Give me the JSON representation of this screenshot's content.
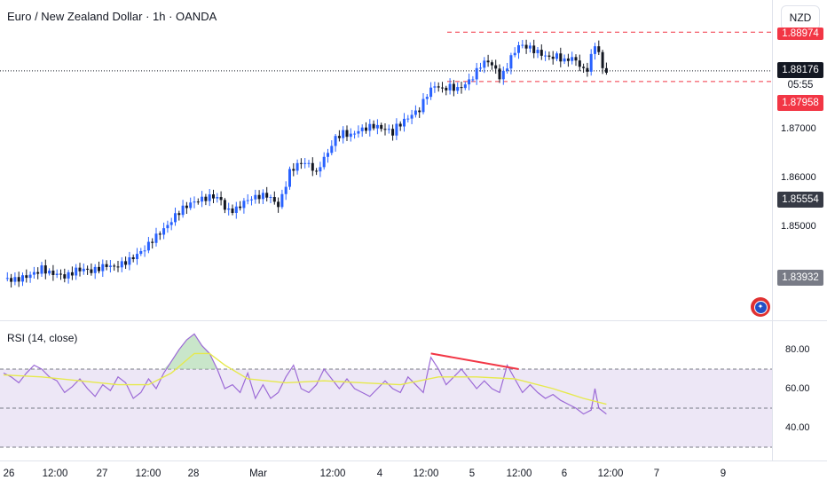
{
  "header": {
    "title": "Euro / New Zealand Dollar · 1h · OANDA",
    "currency": "NZD"
  },
  "price_axis": {
    "ticks": [
      "1.87000",
      "1.86000",
      "1.85000"
    ],
    "tags": {
      "top_red": "1.88974",
      "current_price": "1.88176",
      "countdown": "05:55",
      "lower_red": "1.87958",
      "dark_1": "1.85554",
      "gray_1": "1.83932"
    }
  },
  "time_axis": {
    "labels": [
      "26",
      "12:00",
      "27",
      "12:00",
      "28",
      "Mar",
      "12:00",
      "4",
      "12:00",
      "5",
      "12:00",
      "6",
      "12:00",
      "7",
      "9"
    ]
  },
  "rsi": {
    "title": "RSI (14, close)",
    "ticks": [
      "80.00",
      "60.00",
      "40.00"
    ]
  },
  "colors": {
    "up_candle": "#2962ff",
    "down_candle": "#131722",
    "red_line": "#f23645",
    "rsi_line": "#9c6ad6",
    "rsi_ma": "#e6e94d",
    "rsi_band": "#ede7f6",
    "overbought_fill": "#a5d6a7"
  },
  "chart_data": [
    {
      "type": "candlestick",
      "symbol": "EURNZD",
      "interval": "1h",
      "current_price": 1.88176,
      "countdown": "05:55",
      "levels": [
        1.88974,
        1.87958
      ],
      "price_range": [
        1.8345,
        1.8947
      ],
      "close_path": [
        [
          0,
          1.839
        ],
        [
          3,
          1.8388
        ],
        [
          6,
          1.8395
        ],
        [
          9,
          1.8405
        ],
        [
          10,
          1.8412
        ],
        [
          12,
          1.8402
        ],
        [
          14,
          1.84
        ],
        [
          16,
          1.8395
        ],
        [
          17,
          1.8398
        ],
        [
          19,
          1.8408
        ],
        [
          21,
          1.841
        ],
        [
          23,
          1.8406
        ],
        [
          25,
          1.8412
        ],
        [
          27,
          1.8418
        ],
        [
          29,
          1.8414
        ],
        [
          31,
          1.8421
        ],
        [
          33,
          1.8429
        ],
        [
          35,
          1.844
        ],
        [
          37,
          1.8452
        ],
        [
          39,
          1.847
        ],
        [
          41,
          1.8485
        ],
        [
          43,
          1.85
        ],
        [
          45,
          1.852
        ],
        [
          47,
          1.8535
        ],
        [
          49,
          1.8545
        ],
        [
          51,
          1.8552
        ],
        [
          53,
          1.8556
        ],
        [
          55,
          1.856
        ],
        [
          57,
          1.8552
        ],
        [
          58,
          1.8535
        ],
        [
          59,
          1.853
        ],
        [
          61,
          1.8533
        ],
        [
          63,
          1.8548
        ],
        [
          65,
          1.8556
        ],
        [
          67,
          1.856
        ],
        [
          69,
          1.8562
        ],
        [
          71,
          1.8549
        ],
        [
          72,
          1.854
        ],
        [
          73,
          1.856
        ],
        [
          75,
          1.861
        ],
        [
          77,
          1.8625
        ],
        [
          79,
          1.863
        ],
        [
          81,
          1.8618
        ],
        [
          82,
          1.8605
        ],
        [
          83,
          1.8625
        ],
        [
          85,
          1.865
        ],
        [
          87,
          1.868
        ],
        [
          89,
          1.869
        ],
        [
          91,
          1.8685
        ],
        [
          93,
          1.8695
        ],
        [
          95,
          1.87
        ],
        [
          97,
          1.8705
        ],
        [
          99,
          1.87
        ],
        [
          101,
          1.8695
        ],
        [
          102,
          1.869
        ],
        [
          103,
          1.8703
        ],
        [
          105,
          1.8715
        ],
        [
          107,
          1.8728
        ],
        [
          109,
          1.8738
        ],
        [
          111,
          1.877
        ],
        [
          113,
          1.8788
        ],
        [
          115,
          1.878
        ],
        [
          117,
          1.8785
        ],
        [
          119,
          1.878
        ],
        [
          121,
          1.879
        ],
        [
          123,
          1.8805
        ],
        [
          125,
          1.883
        ],
        [
          127,
          1.8838
        ],
        [
          129,
          1.882
        ],
        [
          130,
          1.8805
        ],
        [
          131,
          1.8812
        ],
        [
          133,
          1.8845
        ],
        [
          135,
          1.887
        ],
        [
          137,
          1.8868
        ],
        [
          139,
          1.886
        ],
        [
          141,
          1.8852
        ],
        [
          143,
          1.8845
        ],
        [
          145,
          1.8848
        ],
        [
          147,
          1.8838
        ],
        [
          149,
          1.8845
        ],
        [
          151,
          1.883
        ],
        [
          152,
          1.8818
        ],
        [
          153,
          1.8822
        ],
        [
          155,
          1.8872
        ],
        [
          156,
          1.8855
        ],
        [
          157,
          1.8822
        ],
        [
          158,
          1.88176
        ]
      ]
    },
    {
      "type": "line",
      "title": "RSI (14, close)",
      "ylim": [
        30,
        90
      ],
      "bands": [
        70,
        50,
        30
      ],
      "rsi_path": [
        [
          0,
          68
        ],
        [
          2,
          66
        ],
        [
          4,
          63
        ],
        [
          6,
          68
        ],
        [
          8,
          72
        ],
        [
          10,
          70
        ],
        [
          12,
          66
        ],
        [
          14,
          64
        ],
        [
          16,
          58
        ],
        [
          18,
          61
        ],
        [
          20,
          65
        ],
        [
          22,
          60
        ],
        [
          24,
          56
        ],
        [
          26,
          62
        ],
        [
          28,
          59
        ],
        [
          30,
          66
        ],
        [
          32,
          63
        ],
        [
          34,
          55
        ],
        [
          36,
          58
        ],
        [
          38,
          65
        ],
        [
          40,
          60
        ],
        [
          42,
          68
        ],
        [
          44,
          74
        ],
        [
          46,
          80
        ],
        [
          48,
          85
        ],
        [
          50,
          88
        ],
        [
          52,
          82
        ],
        [
          54,
          78
        ],
        [
          56,
          70
        ],
        [
          58,
          60
        ],
        [
          60,
          62
        ],
        [
          62,
          58
        ],
        [
          64,
          68
        ],
        [
          66,
          55
        ],
        [
          68,
          62
        ],
        [
          70,
          55
        ],
        [
          72,
          58
        ],
        [
          74,
          66
        ],
        [
          76,
          72
        ],
        [
          78,
          60
        ],
        [
          80,
          58
        ],
        [
          82,
          62
        ],
        [
          84,
          70
        ],
        [
          86,
          65
        ],
        [
          88,
          60
        ],
        [
          90,
          65
        ],
        [
          92,
          60
        ],
        [
          94,
          58
        ],
        [
          96,
          56
        ],
        [
          98,
          60
        ],
        [
          100,
          64
        ],
        [
          102,
          60
        ],
        [
          104,
          58
        ],
        [
          106,
          66
        ],
        [
          108,
          62
        ],
        [
          110,
          58
        ],
        [
          112,
          76
        ],
        [
          114,
          70
        ],
        [
          116,
          62
        ],
        [
          118,
          66
        ],
        [
          120,
          70
        ],
        [
          122,
          65
        ],
        [
          124,
          60
        ],
        [
          126,
          64
        ],
        [
          128,
          60
        ],
        [
          130,
          58
        ],
        [
          132,
          72
        ],
        [
          134,
          65
        ],
        [
          136,
          58
        ],
        [
          138,
          62
        ],
        [
          140,
          58
        ],
        [
          142,
          55
        ],
        [
          144,
          57
        ],
        [
          146,
          54
        ],
        [
          148,
          52
        ],
        [
          150,
          50
        ],
        [
          152,
          47
        ],
        [
          154,
          49
        ],
        [
          155,
          60
        ],
        [
          156,
          50
        ],
        [
          158,
          47
        ]
      ],
      "rsi_ma_path": [
        [
          0,
          67
        ],
        [
          10,
          66
        ],
        [
          20,
          64
        ],
        [
          30,
          62
        ],
        [
          38,
          62
        ],
        [
          44,
          68
        ],
        [
          50,
          78
        ],
        [
          54,
          78
        ],
        [
          58,
          72
        ],
        [
          64,
          65
        ],
        [
          74,
          63
        ],
        [
          84,
          64
        ],
        [
          94,
          63
        ],
        [
          104,
          62
        ],
        [
          114,
          66
        ],
        [
          124,
          66
        ],
        [
          134,
          65
        ],
        [
          144,
          60
        ],
        [
          152,
          55
        ],
        [
          158,
          52
        ]
      ],
      "divergence_line": [
        [
          112,
          78
        ],
        [
          135,
          70
        ]
      ]
    }
  ]
}
